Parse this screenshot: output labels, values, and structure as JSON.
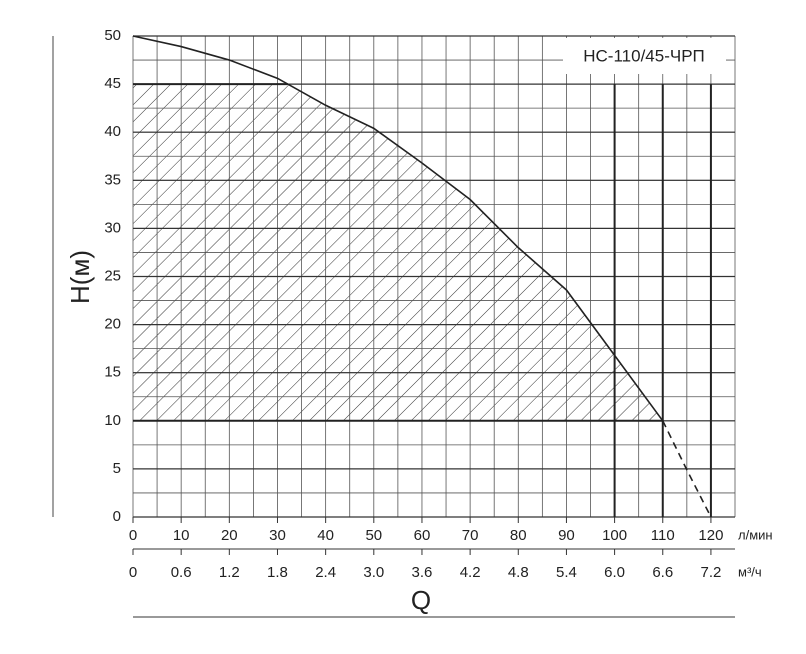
{
  "chart_data": {
    "type": "line",
    "title": "НС-110/45-ЧРП",
    "ylabel": "H(м)",
    "xlabel": "Q",
    "xunit": "л/мин",
    "x2unit": "м³/ч",
    "x": [
      0,
      10,
      20,
      30,
      40,
      50,
      60,
      70,
      80,
      90,
      100,
      110,
      115,
      120
    ],
    "series": [
      {
        "color": "#222222",
        "dash": false,
        "values": [
          50,
          48.9,
          47.5,
          45.6,
          42.8,
          40.4,
          36.8,
          33,
          28,
          23.6,
          16.8,
          10,
          null,
          null
        ]
      },
      {
        "color": "#222222",
        "dash": true,
        "values": [
          null,
          null,
          null,
          null,
          null,
          null,
          null,
          null,
          null,
          null,
          null,
          10,
          4.9,
          0
        ]
      }
    ],
    "shaded_band": [
      10,
      45
    ],
    "marked_flows": [
      100,
      110,
      120
    ],
    "xlim": [
      0,
      125
    ],
    "xticks": [
      0,
      10,
      20,
      30,
      40,
      50,
      60,
      70,
      80,
      90,
      100,
      110,
      120
    ],
    "x2lim": [
      0,
      7.5
    ],
    "x2ticks": [
      0,
      0.6,
      1.2,
      1.8,
      2.4,
      {
        "value": 3,
        "label": "3.0"
      },
      3.6,
      4.2,
      4.8,
      5.4,
      {
        "value": 6,
        "label": "6.0"
      },
      6.6,
      7.2
    ],
    "ylim": [
      0,
      50
    ],
    "yticks": [
      0,
      5,
      10,
      15,
      20,
      25,
      30,
      35,
      40,
      45,
      50
    ],
    "xminor": 5,
    "yminor": 2.5,
    "grid": true
  }
}
